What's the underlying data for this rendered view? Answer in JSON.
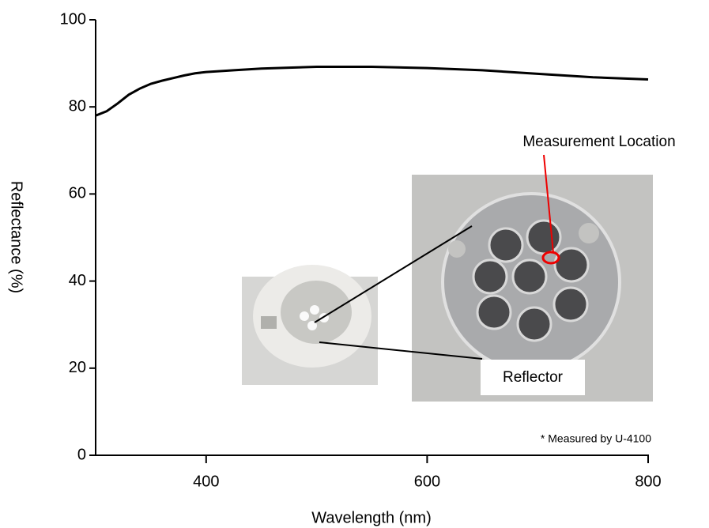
{
  "chart_data": {
    "type": "line",
    "x_label": "Wavelength (nm)",
    "y_label": "Reflectance (%)",
    "x": [
      300,
      310,
      320,
      330,
      340,
      350,
      360,
      370,
      380,
      390,
      400,
      425,
      450,
      475,
      500,
      550,
      600,
      650,
      700,
      750,
      800
    ],
    "series": [
      {
        "color": "#000000",
        "values": [
          78,
          79,
          80.8,
          82.8,
          84.2,
          85.3,
          86,
          86.6,
          87.2,
          87.7,
          88,
          88.4,
          88.8,
          89,
          89.2,
          89.2,
          88.9,
          88.4,
          87.6,
          86.8,
          86.3
        ]
      }
    ],
    "xlim": [
      300,
      800
    ],
    "xticks": [
      400,
      600,
      800
    ],
    "ylim": [
      0,
      100
    ],
    "yticks": [
      0,
      20,
      40,
      60,
      80,
      100
    ],
    "annotations": {
      "location": "Measurement Location",
      "reflector": "Reflector",
      "instrument": "* Measured by U-4100"
    }
  }
}
